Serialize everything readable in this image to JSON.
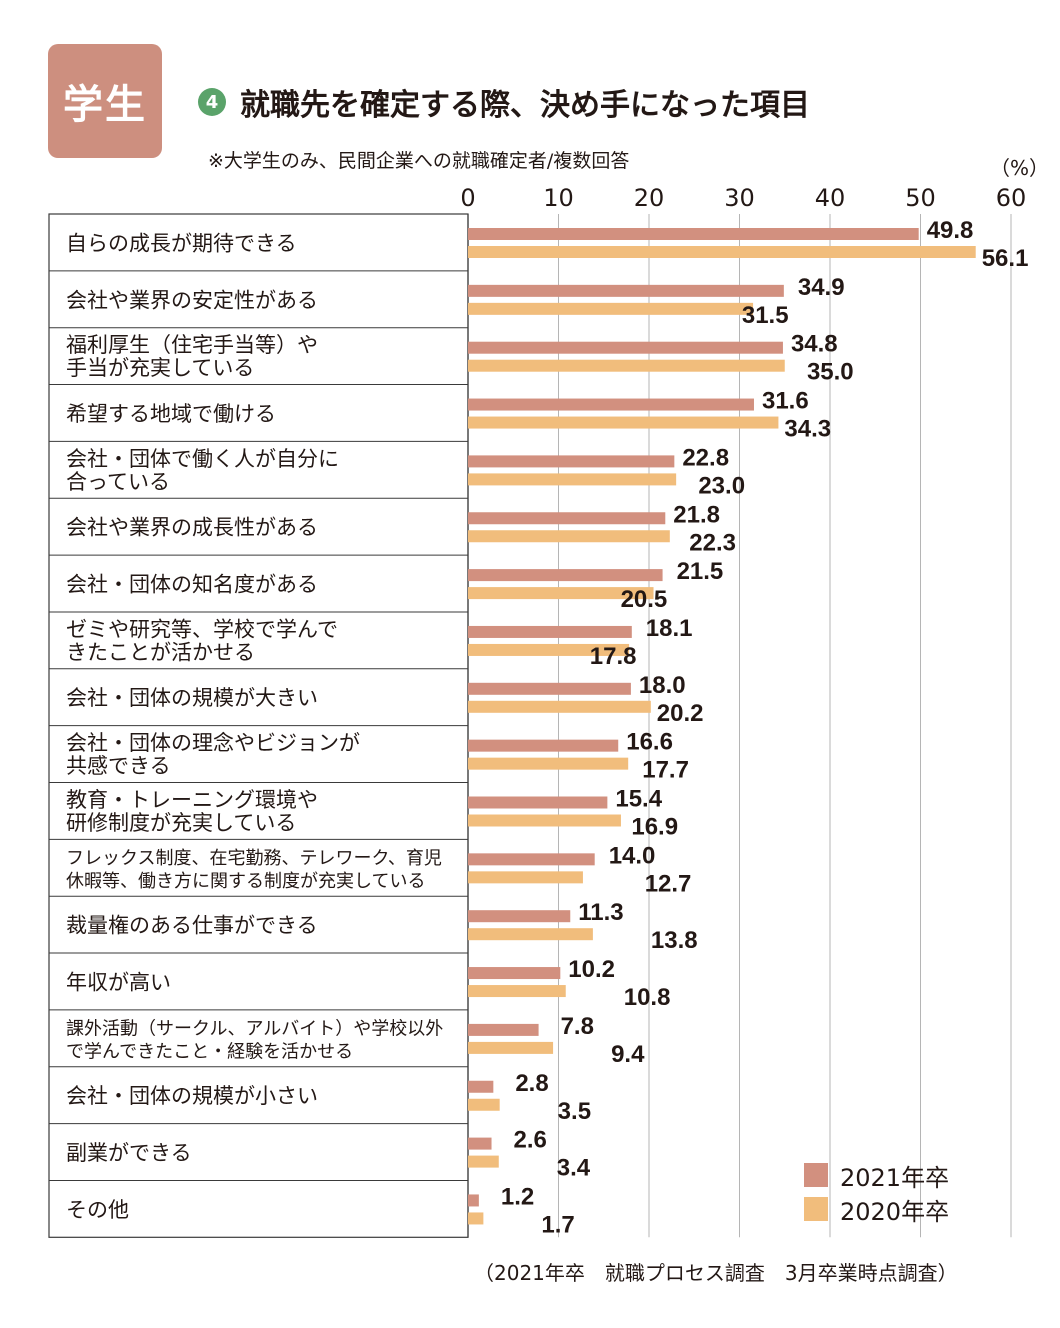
{
  "header": {
    "badge": "学生",
    "number": "4",
    "title": "就職先を確定する際、決め手になった項目",
    "note": "※大学生のみ、民間企業への就職確定者/複数回答",
    "unit": "（%）"
  },
  "source": "（2021年卒　就職プロセス調査　3月卒業時点調査）",
  "colors": {
    "series_2021": "#d2907f",
    "series_2020": "#f1bd7c",
    "grid": "#b5b5b5",
    "frame": "#3a3a3a"
  },
  "chart_data": {
    "type": "bar",
    "orientation": "horizontal",
    "xlim": [
      0,
      60
    ],
    "xticks": [
      "0",
      "10",
      "20",
      "30",
      "40",
      "50",
      "60"
    ],
    "grid": true,
    "legend_position": "bottom-right",
    "categories": [
      [
        "自らの成長が期待できる"
      ],
      [
        "会社や業界の安定性がある"
      ],
      [
        "福利厚生（住宅手当等）や",
        "手当が充実している"
      ],
      [
        "希望する地域で働ける"
      ],
      [
        "会社・団体で働く人が自分に",
        "合っている"
      ],
      [
        "会社や業界の成長性がある"
      ],
      [
        "会社・団体の知名度がある"
      ],
      [
        "ゼミや研究等、学校で学んで",
        "きたことが活かせる"
      ],
      [
        "会社・団体の規模が大きい"
      ],
      [
        "会社・団体の理念やビジョンが",
        "共感できる"
      ],
      [
        "教育・トレーニング環境や",
        "研修制度が充実している"
      ],
      [
        "フレックス制度、在宅勤務、テレワーク、育児",
        "休暇等、働き方に関する制度が充実している"
      ],
      [
        "裁量権のある仕事ができる"
      ],
      [
        "年収が高い"
      ],
      [
        "課外活動（サークル、アルバイト）や学校以外",
        "で学んできたこと・経験を活かせる"
      ],
      [
        "会社・団体の規模が小さい"
      ],
      [
        "副業ができる"
      ],
      [
        "その他"
      ]
    ],
    "series": [
      {
        "name": "2021年卒",
        "values": [
          49.8,
          34.9,
          34.8,
          31.6,
          22.8,
          21.8,
          21.5,
          18.1,
          18.0,
          16.6,
          15.4,
          14.0,
          11.3,
          10.2,
          7.8,
          2.8,
          2.6,
          1.2
        ],
        "labels": [
          "49.8",
          "34.9",
          "34.8",
          "31.6",
          "22.8",
          "21.8",
          "21.5",
          "18.1",
          "18.0",
          "16.6",
          "15.4",
          "14.0",
          "11.3",
          "10.2",
          "7.8",
          "2.8",
          "2.6",
          "1.2"
        ]
      },
      {
        "name": "2020年卒",
        "values": [
          56.1,
          31.5,
          35.0,
          34.3,
          23.0,
          22.3,
          20.5,
          17.8,
          20.2,
          17.7,
          16.9,
          12.7,
          13.8,
          10.8,
          9.4,
          3.5,
          3.4,
          1.7
        ],
        "labels": [
          "56.1",
          "31.5",
          "35.0",
          "34.3",
          "23.0",
          "22.3",
          "20.5",
          "17.8",
          "20.2",
          "17.7",
          "16.9",
          "12.7",
          "13.8",
          "10.8",
          "9.4",
          "3.5",
          "3.4",
          "1.7"
        ]
      }
    ]
  }
}
